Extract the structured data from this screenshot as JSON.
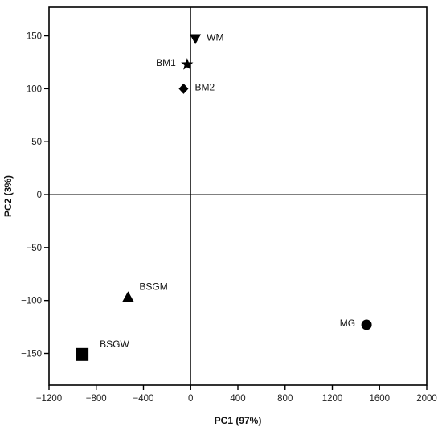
{
  "chart_data": {
    "type": "scatter",
    "xlabel": "PC1 (97%)",
    "ylabel": "PC2 (3%)",
    "xlim": [
      -1200,
      2000
    ],
    "ylim": [
      -180,
      177
    ],
    "x_ticks": [
      -1200,
      -800,
      -400,
      0,
      400,
      800,
      1200,
      1600,
      2000
    ],
    "y_ticks": [
      -150,
      -100,
      -50,
      0,
      50,
      100,
      150
    ],
    "grid": false,
    "reference_lines": {
      "x": 0,
      "y": 0
    },
    "points": [
      {
        "label": "WM",
        "x": 40,
        "y": 147,
        "marker": "triangle-down",
        "label_side": "right"
      },
      {
        "label": "BM1",
        "x": -30,
        "y": 123,
        "marker": "star",
        "label_side": "left"
      },
      {
        "label": "BM2",
        "x": -60,
        "y": 100,
        "marker": "diamond",
        "label_side": "right"
      },
      {
        "label": "BSGM",
        "x": -530,
        "y": -97,
        "marker": "triangle-up",
        "label_side": "right"
      },
      {
        "label": "BSGW",
        "x": -920,
        "y": -151,
        "marker": "square",
        "label_side": "right"
      },
      {
        "label": "MG",
        "x": 1490,
        "y": -123,
        "marker": "circle",
        "label_side": "left"
      }
    ]
  }
}
